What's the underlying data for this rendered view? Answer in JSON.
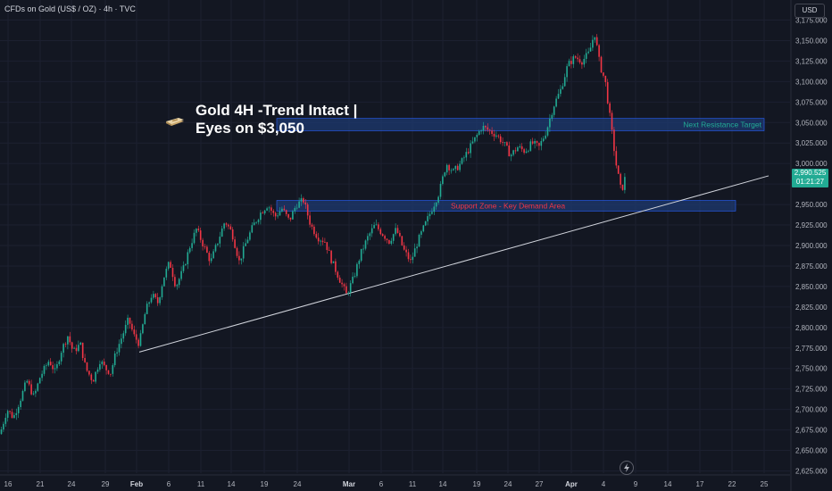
{
  "header": {
    "symbol": "CFDs on Gold (US$ / OZ) · 4h · TVC",
    "currency": "USD"
  },
  "annotation": {
    "line1": "Gold 4H -Trend Intact |",
    "line2": "Eyes on $3,050",
    "icon": "gold-bar-icon"
  },
  "last_price": {
    "value": "2,990.525",
    "countdown": "01:21:27"
  },
  "icons": {
    "replay": "lightning-icon"
  },
  "colors": {
    "background": "#131722",
    "up": "#22ab94",
    "down": "#f23645",
    "zone_fill": "#1e3a70",
    "zone_border": "#2962ff",
    "resistance_text": "#22ab94",
    "support_text": "#f23645",
    "trendline": "#d1d4dc"
  },
  "chart_data": {
    "type": "candlestick",
    "yaxis": {
      "ticks": [
        3175,
        3150,
        3125,
        3100,
        3075,
        3050,
        3025,
        3000,
        2975,
        2950,
        2925,
        2900,
        2875,
        2850,
        2825,
        2800,
        2775,
        2750,
        2725,
        2700,
        2675,
        2650,
        2625
      ],
      "tick_labels": [
        "3,175.000",
        "3,150.000",
        "3,125.000",
        "3,100.000",
        "3,075.000",
        "3,050.000",
        "3,025.000",
        "3,000.000",
        "2,975.000",
        "2,950.000",
        "2,925.000",
        "2,900.000",
        "2,875.000",
        "2,850.000",
        "2,825.000",
        "2,800.000",
        "2,775.000",
        "2,750.000",
        "2,725.000",
        "2,700.000",
        "2,675.000",
        "2,650.000",
        "2,625.000"
      ],
      "range": [
        2620,
        3185
      ]
    },
    "xaxis": {
      "labels": [
        "16",
        "21",
        "24",
        "29",
        "Feb",
        "6",
        "11",
        "14",
        "19",
        "24",
        "Mar",
        "6",
        "11",
        "14",
        "19",
        "24",
        "27",
        "Apr",
        "4",
        "9",
        "14",
        "17",
        "22",
        "25"
      ],
      "bold": [
        "Feb",
        "Mar",
        "Apr"
      ]
    },
    "price_path": [
      [
        0,
        2670
      ],
      [
        8,
        2700
      ],
      [
        15,
        2690
      ],
      [
        22,
        2710
      ],
      [
        30,
        2735
      ],
      [
        38,
        2715
      ],
      [
        45,
        2740
      ],
      [
        55,
        2760
      ],
      [
        62,
        2745
      ],
      [
        68,
        2770
      ],
      [
        76,
        2790
      ],
      [
        82,
        2770
      ],
      [
        90,
        2780
      ],
      [
        96,
        2750
      ],
      [
        104,
        2735
      ],
      [
        112,
        2760
      ],
      [
        118,
        2750
      ],
      [
        124,
        2745
      ],
      [
        130,
        2770
      ],
      [
        137,
        2790
      ],
      [
        144,
        2810
      ],
      [
        150,
        2790
      ],
      [
        156,
        2780
      ],
      [
        163,
        2820
      ],
      [
        170,
        2840
      ],
      [
        177,
        2830
      ],
      [
        183,
        2860
      ],
      [
        190,
        2880
      ],
      [
        197,
        2850
      ],
      [
        205,
        2870
      ],
      [
        213,
        2900
      ],
      [
        220,
        2920
      ],
      [
        228,
        2900
      ],
      [
        236,
        2880
      ],
      [
        244,
        2905
      ],
      [
        252,
        2930
      ],
      [
        260,
        2915
      ],
      [
        268,
        2880
      ],
      [
        276,
        2905
      ],
      [
        284,
        2925
      ],
      [
        292,
        2940
      ],
      [
        300,
        2950
      ],
      [
        308,
        2935
      ],
      [
        316,
        2945
      ],
      [
        324,
        2930
      ],
      [
        332,
        2950
      ],
      [
        340,
        2955
      ],
      [
        348,
        2925
      ],
      [
        356,
        2910
      ],
      [
        364,
        2905
      ],
      [
        372,
        2880
      ],
      [
        380,
        2860
      ],
      [
        388,
        2840
      ],
      [
        396,
        2860
      ],
      [
        404,
        2890
      ],
      [
        412,
        2910
      ],
      [
        420,
        2925
      ],
      [
        428,
        2915
      ],
      [
        436,
        2905
      ],
      [
        444,
        2920
      ],
      [
        452,
        2895
      ],
      [
        460,
        2880
      ],
      [
        468,
        2905
      ],
      [
        476,
        2925
      ],
      [
        484,
        2945
      ],
      [
        492,
        2965
      ],
      [
        500,
        3000
      ],
      [
        508,
        2990
      ],
      [
        516,
        3000
      ],
      [
        524,
        3015
      ],
      [
        532,
        3030
      ],
      [
        540,
        3045
      ],
      [
        548,
        3040
      ],
      [
        556,
        3035
      ],
      [
        564,
        3025
      ],
      [
        572,
        3010
      ],
      [
        580,
        3020
      ],
      [
        588,
        3015
      ],
      [
        596,
        3025
      ],
      [
        604,
        3020
      ],
      [
        612,
        3040
      ],
      [
        620,
        3070
      ],
      [
        628,
        3090
      ],
      [
        636,
        3120
      ],
      [
        644,
        3130
      ],
      [
        652,
        3125
      ],
      [
        660,
        3135
      ],
      [
        666,
        3160
      ],
      [
        672,
        3120
      ],
      [
        678,
        3100
      ],
      [
        684,
        3050
      ],
      [
        690,
        3000
      ],
      [
        696,
        2965
      ],
      [
        702,
        2990
      ]
    ],
    "zones": [
      {
        "name": "resistance",
        "label": "Next Resistance Target",
        "top": 3055,
        "bottom": 3040,
        "x_from_label": "19",
        "x_to": "edge"
      },
      {
        "name": "support",
        "label": "Support Zone - Key Demand Area",
        "top": 2955,
        "bottom": 2942,
        "x_from_label": "19",
        "x_to": "22"
      }
    ],
    "trendline": {
      "from": {
        "x_label": "Feb",
        "price": 2770
      },
      "to": {
        "x_label": "25",
        "price": 2985
      }
    },
    "last_price": 2990.525
  }
}
